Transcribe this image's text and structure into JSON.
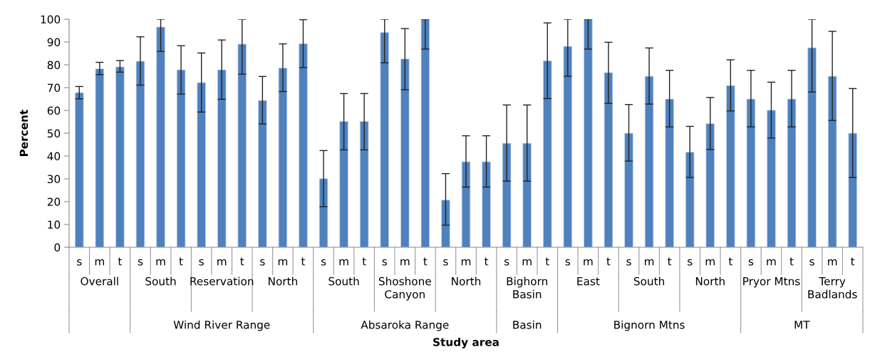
{
  "chart_data": {
    "type": "bar",
    "ylabel": "Percent",
    "color": "#4f81bd",
    "categories": [
      "s",
      "m",
      "t",
      "s",
      "m",
      "t",
      "s",
      "m",
      "t",
      "s",
      "m",
      "t",
      "s",
      "m",
      "t",
      "s",
      "m",
      "t",
      "s",
      "m",
      "t",
      "s",
      "m",
      "t",
      "s",
      "m",
      "t",
      "s",
      "m",
      "t",
      "s",
      "m",
      "t",
      "s",
      "m",
      "t",
      "s",
      "m",
      "t"
    ],
    "annotations": [
      "Overall",
      "South",
      "Reservation",
      "North",
      "South",
      "Shoshone\nCanyon",
      "North",
      "Bighorn\nBasin",
      "East",
      "South",
      "North",
      "Pryor Mtns",
      "Terry\nBadlands",
      "Wind River Range",
      "Absaroka Range",
      "Basin",
      "Bignorn Mtns",
      "MT",
      "Study area"
    ],
    "values": [
      67.8,
      78.3,
      79.1,
      81.6,
      96.6,
      77.8,
      72.2,
      77.8,
      89.1,
      64.4,
      78.6,
      89.3,
      30.1,
      55.2,
      55.2,
      94.2,
      82.6,
      100,
      20.7,
      37.5,
      37.5,
      45.6,
      45.6,
      81.8,
      88.1,
      100,
      76.6,
      50.0,
      75.0,
      65.0,
      41.7,
      54.2,
      70.9,
      65.0,
      60.1,
      65.0,
      87.5,
      75.0,
      50.0
    ],
    "errors": [
      [
        65.1,
        70.5
      ],
      [
        75.7,
        81.1
      ],
      [
        76.8,
        81.9
      ],
      [
        71.1,
        92.3
      ],
      [
        85.9,
        100
      ],
      [
        67.2,
        88.4
      ],
      [
        59.3,
        85.2
      ],
      [
        64.9,
        90.9
      ],
      [
        75.9,
        100
      ],
      [
        54.1,
        74.9
      ],
      [
        68.3,
        89.2
      ],
      [
        78.8,
        99.8
      ],
      [
        17.8,
        42.4
      ],
      [
        42.7,
        67.4
      ],
      [
        42.7,
        67.4
      ],
      [
        80.9,
        100
      ],
      [
        69.1,
        95.9
      ],
      [
        86.9,
        100
      ],
      [
        9.7,
        32.3
      ],
      [
        26.4,
        48.9
      ],
      [
        26.4,
        48.9
      ],
      [
        29.0,
        62.4
      ],
      [
        29.0,
        62.4
      ],
      [
        65.2,
        98.4
      ],
      [
        75.0,
        100
      ],
      [
        86.9,
        100
      ],
      [
        63.1,
        89.9
      ],
      [
        37.8,
        62.6
      ],
      [
        62.8,
        87.4
      ],
      [
        52.8,
        77.6
      ],
      [
        30.6,
        53.0
      ],
      [
        42.9,
        65.7
      ],
      [
        59.8,
        82.2
      ],
      [
        52.8,
        77.6
      ],
      [
        47.9,
        72.4
      ],
      [
        52.8,
        77.6
      ],
      [
        68.1,
        100
      ],
      [
        55.6,
        94.7
      ],
      [
        30.6,
        69.6
      ]
    ],
    "ylim": [
      0,
      100
    ],
    "yticks": [
      0,
      10,
      20,
      30,
      40,
      50,
      60,
      70,
      80,
      90,
      100
    ],
    "grid": false
  }
}
